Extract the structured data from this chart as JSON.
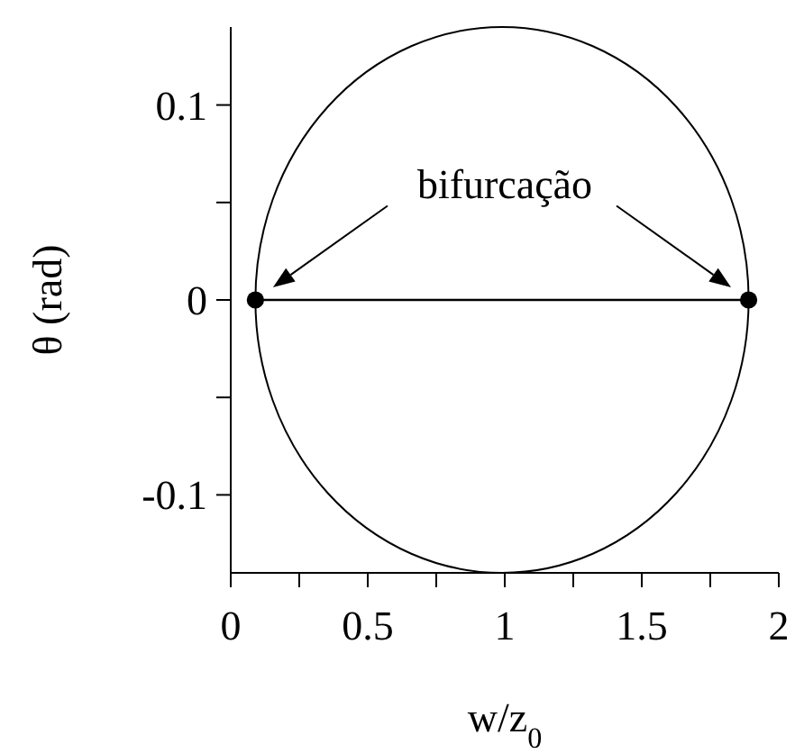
{
  "chart_data": {
    "type": "line",
    "xlabel": "w/z$_{0}$",
    "ylabel": "θ (rad)",
    "xlim": [
      0,
      2
    ],
    "ylim": [
      -0.14,
      0.14
    ],
    "xticks": [
      0,
      {
        "value": 0.25,
        "label": null
      },
      0.5,
      {
        "value": 0.75,
        "label": null
      },
      1,
      {
        "value": 1.25,
        "label": null
      },
      1.5,
      {
        "value": 1.75,
        "label": null
      },
      2
    ],
    "yticks": [
      -0.1,
      {
        "value": -0.05,
        "label": null
      },
      0,
      {
        "value": 0.05,
        "label": null
      },
      0.1
    ],
    "series": [
      {
        "marker": "circle",
        "color": "#000000",
        "x": [
          0.09,
          1.89
        ],
        "values": [
          0,
          0
        ]
      }
    ],
    "annotations": [
      "bifurcação"
    ]
  }
}
